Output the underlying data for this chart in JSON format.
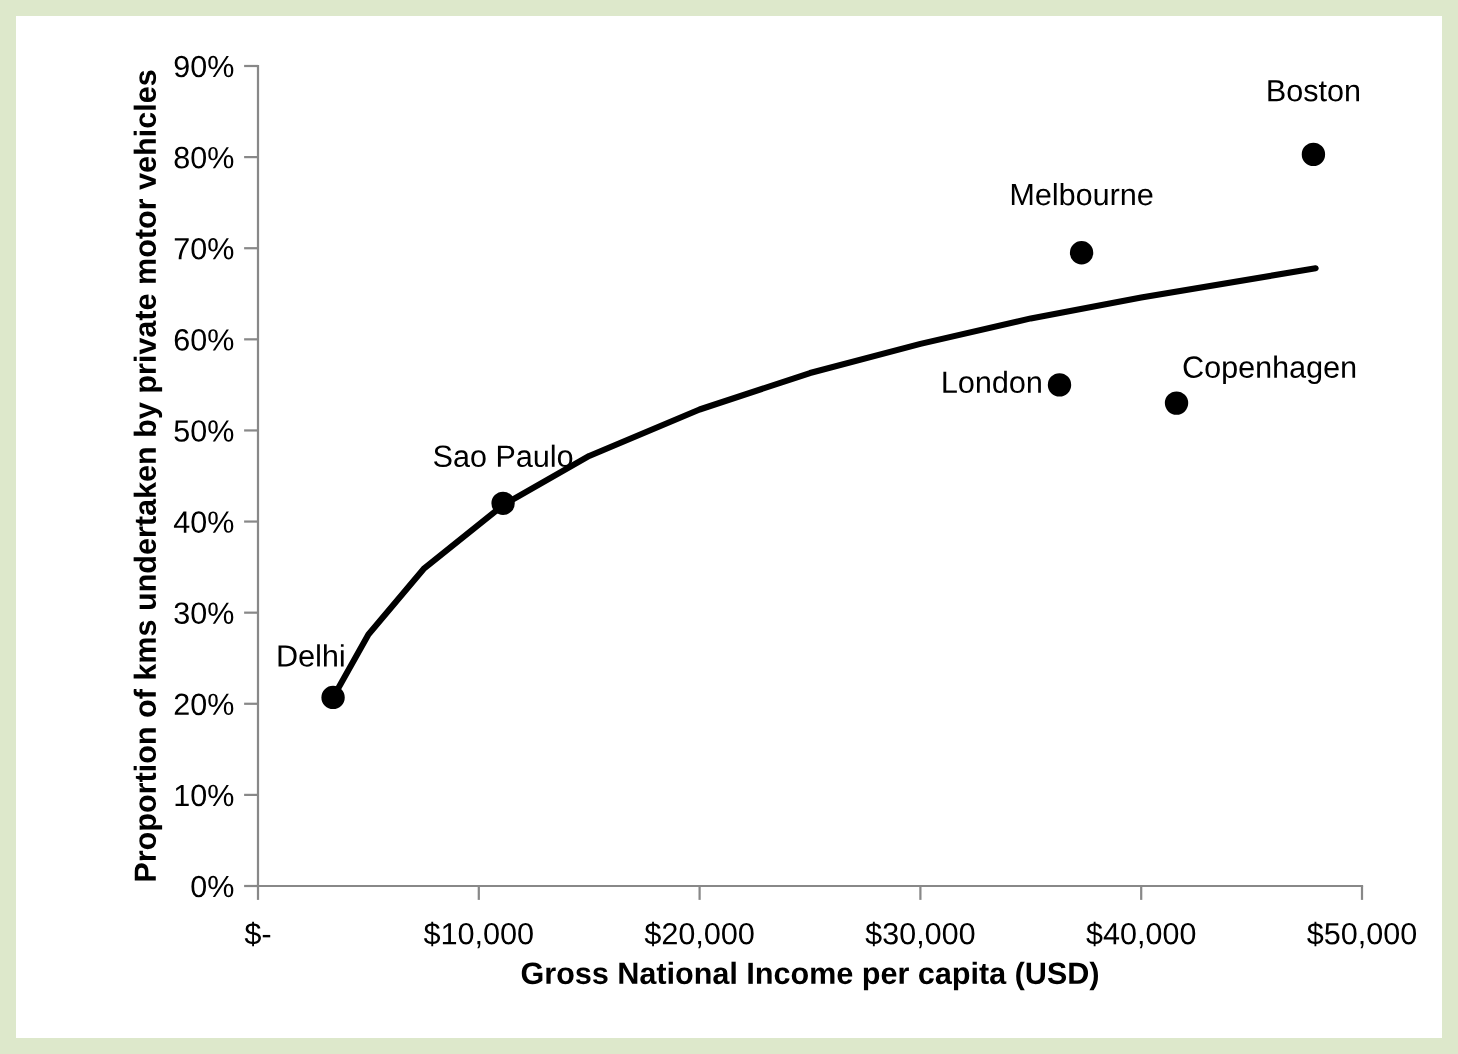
{
  "chart_data": {
    "type": "scatter",
    "xlabel": "Gross National Income per capita (USD)",
    "ylabel": "Proportion of kms undertaken by private motor vehicles",
    "series": [
      {
        "color": "#000000",
        "marker": "circle",
        "x": [
          3400,
          11100,
          36300,
          37300,
          41600,
          47800
        ],
        "values": [
          20.7,
          42.0,
          55.0,
          69.5,
          53.0,
          80.3
        ]
      },
      {
        "type": "line",
        "color": "#000000",
        "marker": "none",
        "line_style": "solid",
        "x": [
          3400,
          5000,
          7500,
          11100,
          15000,
          20000,
          25000,
          30000,
          35000,
          40000,
          47900
        ],
        "values": [
          20.7,
          27.6,
          34.8,
          41.8,
          47.2,
          52.3,
          56.3,
          59.5,
          62.3,
          64.6,
          67.8
        ]
      }
    ],
    "annotations": [
      {
        "text": "Delhi",
        "x": 3400,
        "y": 20.7
      },
      {
        "text": "Sao Paulo",
        "x": 11100,
        "y": 42.0
      },
      {
        "text": "London",
        "x": 36300,
        "y": 55.0
      },
      {
        "text": "Melbourne",
        "x": 37300,
        "y": 69.5
      },
      {
        "text": "Copenhagen",
        "x": 41600,
        "y": 53.0
      },
      {
        "text": "Boston",
        "x": 47800,
        "y": 80.3
      }
    ],
    "xlim": [
      0,
      50000
    ],
    "xticks": [
      {
        "value": 0,
        "label": "$-"
      },
      {
        "value": 10000,
        "label": "$10,000"
      },
      {
        "value": 20000,
        "label": "$20,000"
      },
      {
        "value": 30000,
        "label": "$30,000"
      },
      {
        "value": 40000,
        "label": "$40,000"
      },
      {
        "value": 50000,
        "label": "$50,000"
      }
    ],
    "ylim": [
      0,
      90
    ],
    "yticks": [
      {
        "value": 0,
        "label": "0%"
      },
      {
        "value": 10,
        "label": "10%"
      },
      {
        "value": 20,
        "label": "20%"
      },
      {
        "value": 30,
        "label": "30%"
      },
      {
        "value": 40,
        "label": "40%"
      },
      {
        "value": 50,
        "label": "50%"
      },
      {
        "value": 60,
        "label": "60%"
      },
      {
        "value": 70,
        "label": "70%"
      },
      {
        "value": 80,
        "label": "80%"
      },
      {
        "value": 90,
        "label": "90%"
      }
    ],
    "grid": false,
    "legend": false
  }
}
